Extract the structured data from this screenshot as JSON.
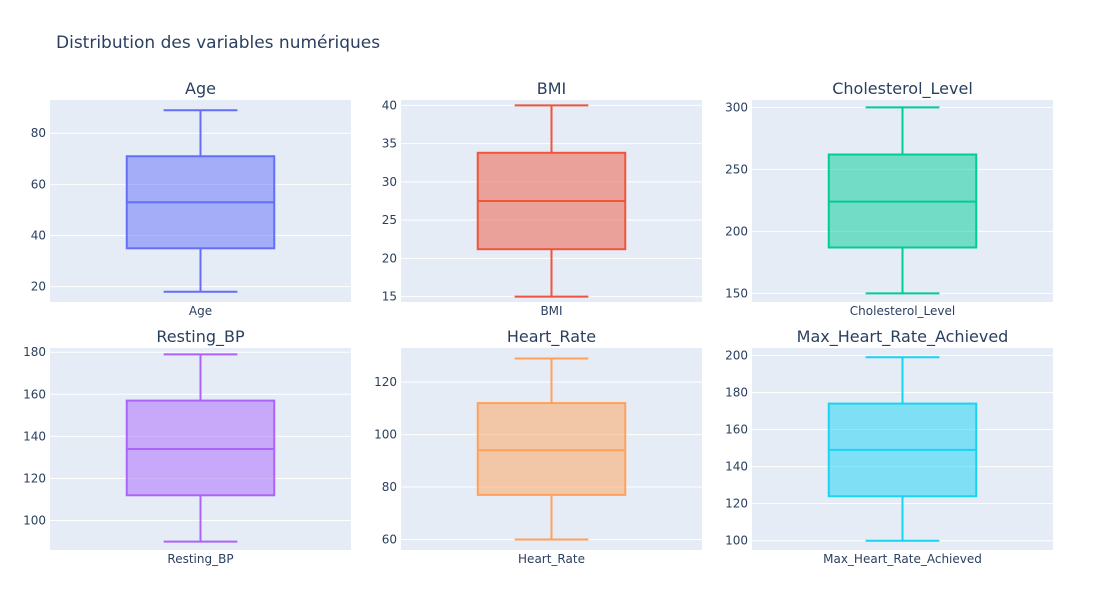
{
  "title": "Distribution des variables numériques",
  "colors": {
    "plot_bg": "#e5ecf6",
    "grid": "#ffffff",
    "text": "#2a3f5f",
    "tick_text": "#2a3f5f"
  },
  "chart_data": [
    {
      "type": "box",
      "title": "Age",
      "category": "Age",
      "color": "#636efa",
      "ylim": [
        14,
        93
      ],
      "yticks": [
        20,
        40,
        60,
        80
      ],
      "min": 18,
      "q1": 35,
      "median": 53,
      "q3": 71,
      "max": 89
    },
    {
      "type": "box",
      "title": "BMI",
      "category": "BMI",
      "color": "#ef553b",
      "ylim": [
        14.3,
        40.7
      ],
      "yticks": [
        15,
        20,
        25,
        30,
        35,
        40
      ],
      "min": 15,
      "q1": 21.2,
      "median": 27.5,
      "q3": 33.8,
      "max": 40
    },
    {
      "type": "box",
      "title": "Cholesterol_Level",
      "category": "Cholesterol_Level",
      "color": "#00cc96",
      "ylim": [
        143,
        306
      ],
      "yticks": [
        150,
        200,
        250,
        300
      ],
      "min": 150,
      "q1": 187,
      "median": 224,
      "q3": 262,
      "max": 300
    },
    {
      "type": "box",
      "title": "Resting_BP",
      "category": "Resting_BP",
      "color": "#ab63fa",
      "ylim": [
        86,
        182
      ],
      "yticks": [
        100,
        120,
        140,
        160,
        180
      ],
      "min": 90,
      "q1": 112,
      "median": 134,
      "q3": 157,
      "max": 179
    },
    {
      "type": "box",
      "title": "Heart_Rate",
      "category": "Heart_Rate",
      "color": "#ffa15a",
      "ylim": [
        56,
        133
      ],
      "yticks": [
        60,
        80,
        100,
        120
      ],
      "min": 60,
      "q1": 77,
      "median": 94,
      "q3": 112,
      "max": 129
    },
    {
      "type": "box",
      "title": "Max_Heart_Rate_Achieved",
      "category": "Max_Heart_Rate_Achieved",
      "color": "#19d3f3",
      "ylim": [
        95,
        204
      ],
      "yticks": [
        100,
        120,
        140,
        160,
        180,
        200
      ],
      "min": 100,
      "q1": 124,
      "median": 149,
      "q3": 174,
      "max": 199
    }
  ]
}
